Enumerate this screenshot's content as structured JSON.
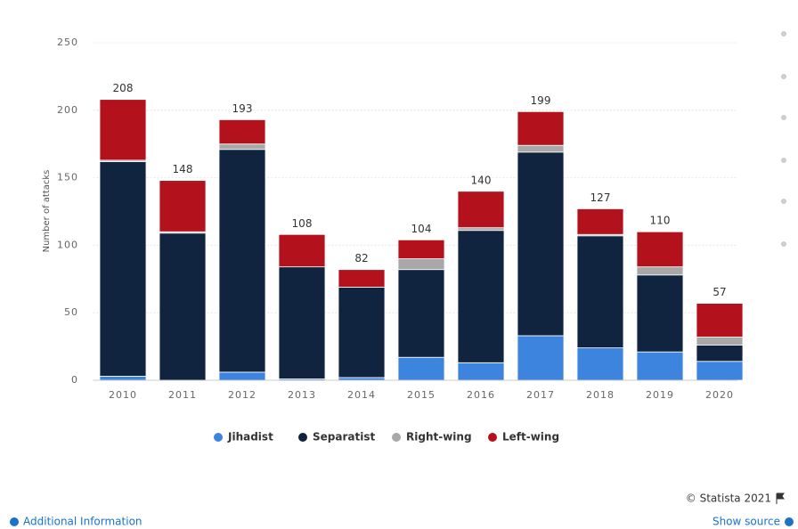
{
  "chart_data": {
    "type": "stacked_bar",
    "y_label": "Number of attacks",
    "categories": [
      "2010",
      "2011",
      "2012",
      "2013",
      "2014",
      "2015",
      "2016",
      "2017",
      "2018",
      "2019",
      "2020"
    ],
    "series": [
      {
        "name": "Jihadist",
        "color": "#3d84df",
        "values": [
          3,
          0,
          6,
          1,
          2,
          17,
          13,
          33,
          24,
          21,
          14
        ]
      },
      {
        "name": "Separatist",
        "color": "#10243f",
        "values": [
          159,
          109,
          165,
          83,
          67,
          65,
          98,
          136,
          83,
          57,
          12
        ]
      },
      {
        "name": "Right-wing",
        "color": "#a8a8a8",
        "values": [
          1,
          1,
          4,
          0,
          0,
          8,
          2,
          5,
          1,
          6,
          6
        ]
      },
      {
        "name": "Left-wing",
        "color": "#b3121c",
        "values": [
          45,
          38,
          18,
          24,
          13,
          14,
          27,
          25,
          19,
          26,
          25
        ]
      }
    ],
    "totals": [
      208,
      148,
      193,
      108,
      82,
      104,
      140,
      199,
      127,
      110,
      57
    ],
    "ylim": [
      0,
      250
    ],
    "yticks": [
      0,
      50,
      100,
      150,
      200,
      250
    ],
    "grid": true,
    "copyright": "© Statista 2021",
    "additional_info": "Additional Information",
    "show_source": "Show source"
  }
}
